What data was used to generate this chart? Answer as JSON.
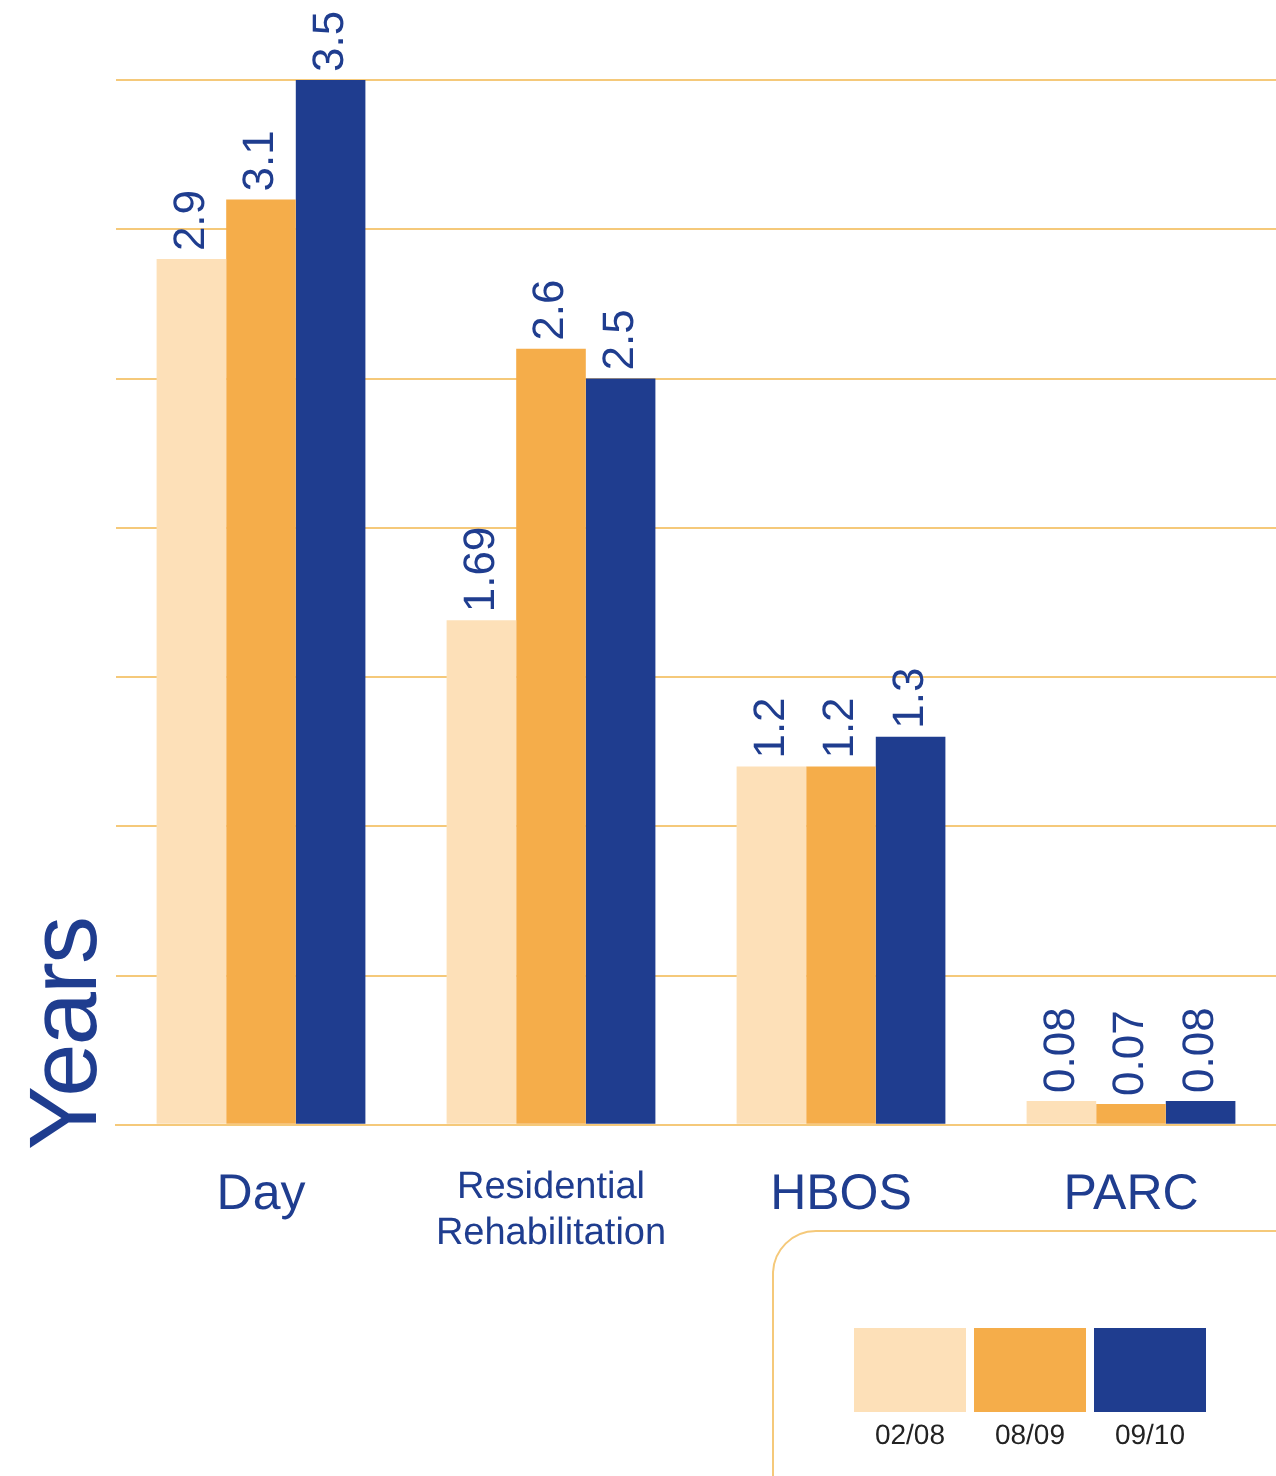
{
  "chart_data": {
    "type": "bar",
    "ylabel": "Years",
    "categories": [
      "Day",
      "Residential Rehabilitation",
      "HBOS",
      "PARC"
    ],
    "series": [
      {
        "name": "02/08",
        "color": "#fde0b8",
        "values": [
          2.9,
          1.69,
          1.2,
          0.08
        ]
      },
      {
        "name": "08/09",
        "color": "#f5ad4a",
        "values": [
          3.1,
          2.6,
          1.2,
          0.07
        ]
      },
      {
        "name": "09/10",
        "color": "#1f3d8f",
        "values": [
          3.5,
          2.5,
          1.3,
          0.08
        ]
      }
    ],
    "ylim": [
      0,
      3.5
    ],
    "yticks": [
      {
        "value": 0,
        "label": null
      },
      {
        "value": 0.5,
        "label": null
      },
      {
        "value": 1,
        "label": null
      },
      {
        "value": 1.5,
        "label": null
      },
      {
        "value": 2,
        "label": null
      },
      {
        "value": 2.5,
        "label": null
      },
      {
        "value": 3,
        "label": null
      },
      {
        "value": 3.5,
        "label": null
      }
    ],
    "tick_labels": "x",
    "grid": "y",
    "data_labels": true,
    "legend": "bottom right"
  }
}
